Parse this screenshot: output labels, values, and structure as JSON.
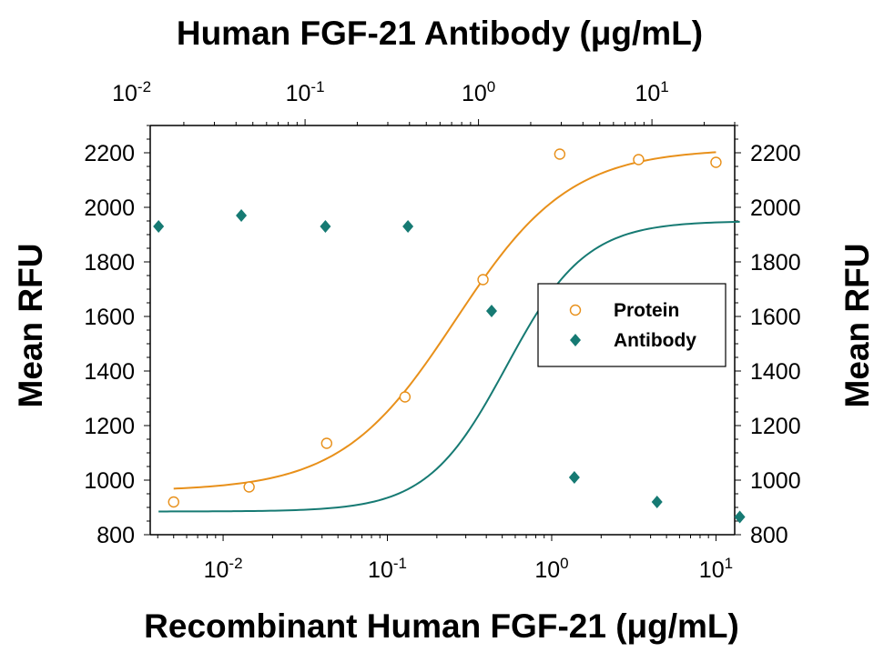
{
  "chart_data": {
    "type": "scatter",
    "title": "",
    "top_axis": {
      "label": "Human FGF-21 Antibody (μg/mL)",
      "scale": "log",
      "range": [
        0.0128,
        30
      ],
      "ticks": [
        {
          "value": 0.01,
          "base": "10",
          "exp": "-2"
        },
        {
          "value": 0.1,
          "base": "10",
          "exp": "-1"
        },
        {
          "value": 1,
          "base": "10",
          "exp": "0"
        },
        {
          "value": 10,
          "base": "10",
          "exp": "1"
        }
      ]
    },
    "bottom_axis": {
      "label": "Recombinant Human FGF-21 (μg/mL)",
      "scale": "log",
      "range": [
        0.0036,
        13
      ],
      "ticks": [
        {
          "value": 0.01,
          "base": "10",
          "exp": "-2"
        },
        {
          "value": 0.1,
          "base": "10",
          "exp": "-1"
        },
        {
          "value": 1,
          "base": "10",
          "exp": "0"
        },
        {
          "value": 10,
          "base": "10",
          "exp": "1"
        }
      ]
    },
    "left_axis": {
      "label": "Mean RFU",
      "range": [
        800,
        2300
      ],
      "ticks": [
        800,
        1000,
        1200,
        1400,
        1600,
        1800,
        2000,
        2200
      ]
    },
    "right_axis": {
      "label": "Mean RFU",
      "range": [
        800,
        2300
      ],
      "ticks": [
        800,
        1000,
        1200,
        1400,
        1600,
        1800,
        2000,
        2200
      ]
    },
    "legend_position": "right",
    "series": [
      {
        "name": "Protein",
        "axis": "bottom",
        "marker": "open-circle",
        "color": "#E8901A",
        "x": [
          0.005,
          0.0144,
          0.0427,
          0.128,
          0.382,
          1.12,
          3.38,
          10.0
        ],
        "y": [
          920,
          975,
          1135,
          1305,
          1735,
          2195,
          2175,
          2165
        ],
        "fit": {
          "model": "4PL",
          "bottom": 960,
          "top": 2215,
          "ec50": 0.26,
          "hill": 1.25
        }
      },
      {
        "name": "Antibody",
        "axis": "top",
        "marker": "filled-diamond",
        "color": "#167A73",
        "x": [
          0.0143,
          0.0429,
          0.131,
          0.392,
          1.19,
          3.57,
          10.7,
          32.1
        ],
        "y": [
          1930,
          1970,
          1930,
          1930,
          1620,
          1010,
          920,
          865
        ],
        "fit": {
          "model": "4PL",
          "bottom": 885,
          "top": 1950,
          "ec50": 1.45,
          "hill": 1.9
        }
      }
    ]
  }
}
